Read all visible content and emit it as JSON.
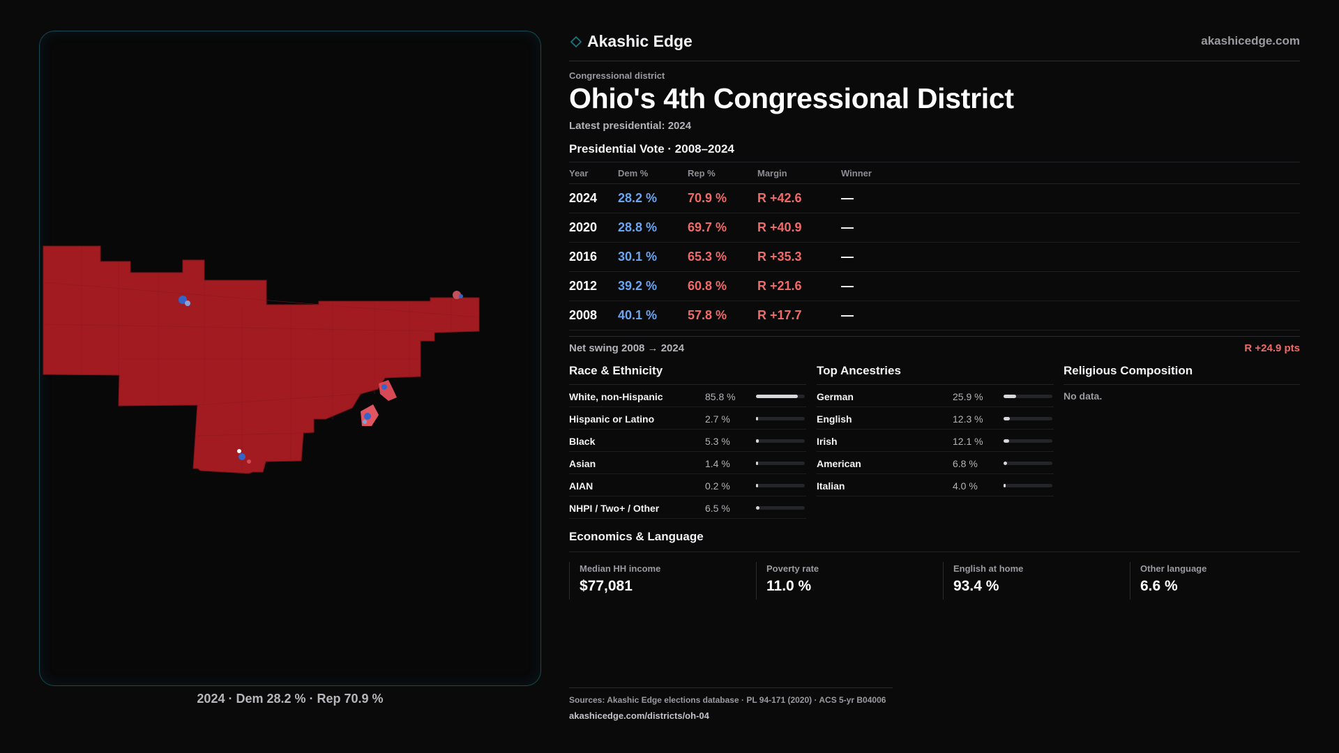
{
  "map": {
    "caption": "2024 · Dem 28.2 % · Rep 70.9 %",
    "colors": {
      "rep": "#a11b20",
      "dem": "#3564c8",
      "border": "#164a55"
    }
  },
  "brand": {
    "name": "Akashic Edge",
    "url": "akashicedge.com",
    "icon": "diamond-icon"
  },
  "district": {
    "eyebrow": "Congressional district",
    "title": "Ohio's 4th Congressional District",
    "subtitle": "Latest presidential: 2024"
  },
  "vote": {
    "heading": "Presidential Vote · 2008–2024",
    "columns": [
      "Year",
      "Dem %",
      "Rep %",
      "Margin",
      "Winner"
    ],
    "rows": [
      {
        "year": "2024",
        "dem": "28.2 %",
        "rep": "70.9 %",
        "margin": "R +42.6",
        "winner": "—"
      },
      {
        "year": "2020",
        "dem": "28.8 %",
        "rep": "69.7 %",
        "margin": "R +40.9",
        "winner": "—"
      },
      {
        "year": "2016",
        "dem": "30.1 %",
        "rep": "65.3 %",
        "margin": "R +35.3",
        "winner": "—"
      },
      {
        "year": "2012",
        "dem": "39.2 %",
        "rep": "60.8 %",
        "margin": "R +21.6",
        "winner": "—"
      },
      {
        "year": "2008",
        "dem": "40.1 %",
        "rep": "57.8 %",
        "margin": "R +17.7",
        "winner": "—"
      }
    ],
    "swing_label": "Net swing 2008 → 2024",
    "swing_value": "R +24.9 pts"
  },
  "race": {
    "heading": "Race & Ethnicity",
    "rows": [
      {
        "label": "White, non-Hispanic",
        "value": "85.8 %",
        "pct": 85.8
      },
      {
        "label": "Hispanic or Latino",
        "value": "2.7 %",
        "pct": 2.7
      },
      {
        "label": "Black",
        "value": "5.3 %",
        "pct": 5.3
      },
      {
        "label": "Asian",
        "value": "1.4 %",
        "pct": 1.4
      },
      {
        "label": "AIAN",
        "value": "0.2 %",
        "pct": 0.2
      },
      {
        "label": "NHPI / Two+ / Other",
        "value": "6.5 %",
        "pct": 6.5
      }
    ]
  },
  "ancestry": {
    "heading": "Top Ancestries",
    "rows": [
      {
        "label": "German",
        "value": "25.9 %",
        "pct": 25.9
      },
      {
        "label": "English",
        "value": "12.3 %",
        "pct": 12.3
      },
      {
        "label": "Irish",
        "value": "12.1 %",
        "pct": 12.1
      },
      {
        "label": "American",
        "value": "6.8 %",
        "pct": 6.8
      },
      {
        "label": "Italian",
        "value": "4.0 %",
        "pct": 4.0
      }
    ]
  },
  "religion": {
    "heading": "Religious Composition",
    "empty": "No data."
  },
  "economics": {
    "heading": "Economics & Language",
    "cards": [
      {
        "label": "Median HH income",
        "value": "$77,081"
      },
      {
        "label": "Poverty rate",
        "value": "11.0 %"
      },
      {
        "label": "English at home",
        "value": "93.4 %"
      },
      {
        "label": "Other language",
        "value": "6.6 %"
      }
    ]
  },
  "sources": {
    "line1": "Sources: Akashic Edge elections database · PL 94-171 (2020) · ACS 5-yr B04006",
    "line2": "akashicedge.com/districts/oh-04"
  }
}
